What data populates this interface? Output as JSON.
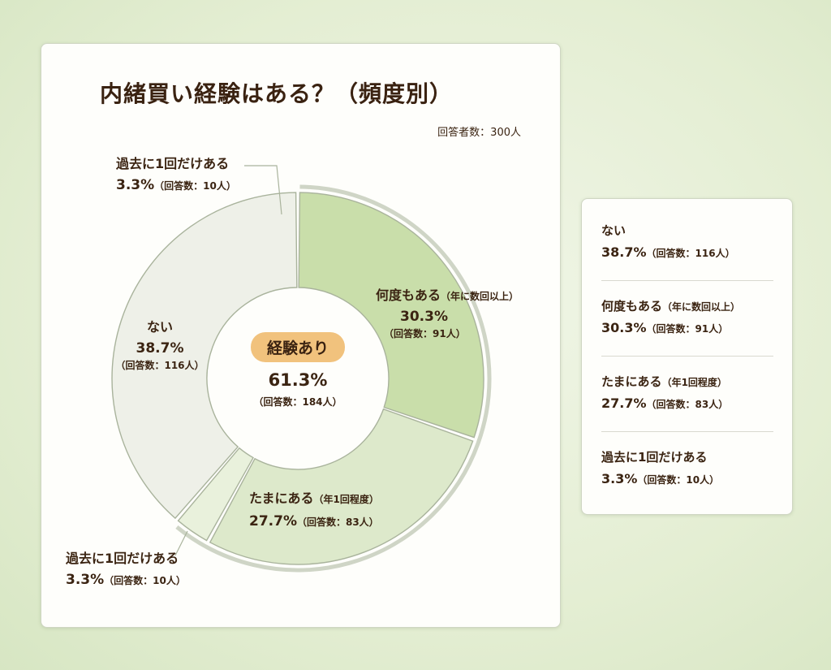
{
  "chart_data": {
    "type": "pie",
    "title": "内緒買い経験はある？（頻度別）",
    "total_label": "回答者数：300人",
    "center": {
      "label": "経験あり",
      "percent": "61.3%",
      "count": "（回答数：184人）",
      "value": 61.3
    },
    "slices": [
      {
        "name": "何度もある",
        "note": "（年に数回以上）",
        "value": 30.3,
        "percent": "30.3%",
        "count": "（回答数：91人）",
        "color": "#c9deaa"
      },
      {
        "name": "たまにある",
        "note": "（年1回程度）",
        "value": 27.7,
        "percent": "27.7%",
        "count": "（回答数：83人）",
        "color": "#dde9cb"
      },
      {
        "name": "過去に1回だけある",
        "note": "",
        "value": 3.3,
        "percent": "3.3%",
        "count": "（回答数：10人）",
        "color": "#e9f1dc"
      },
      {
        "name": "ない",
        "note": "",
        "value": 38.7,
        "percent": "38.7%",
        "count": "（回答数：116人）",
        "color": "#eef0e8"
      }
    ],
    "callout_top": {
      "name": "過去に1回だけある",
      "percent": "3.3%",
      "count": "（回答数：10人）"
    },
    "legend_order": [
      3,
      0,
      1,
      2
    ],
    "ring_color": "#cfd5c6",
    "border_color": "#a9b39c"
  }
}
